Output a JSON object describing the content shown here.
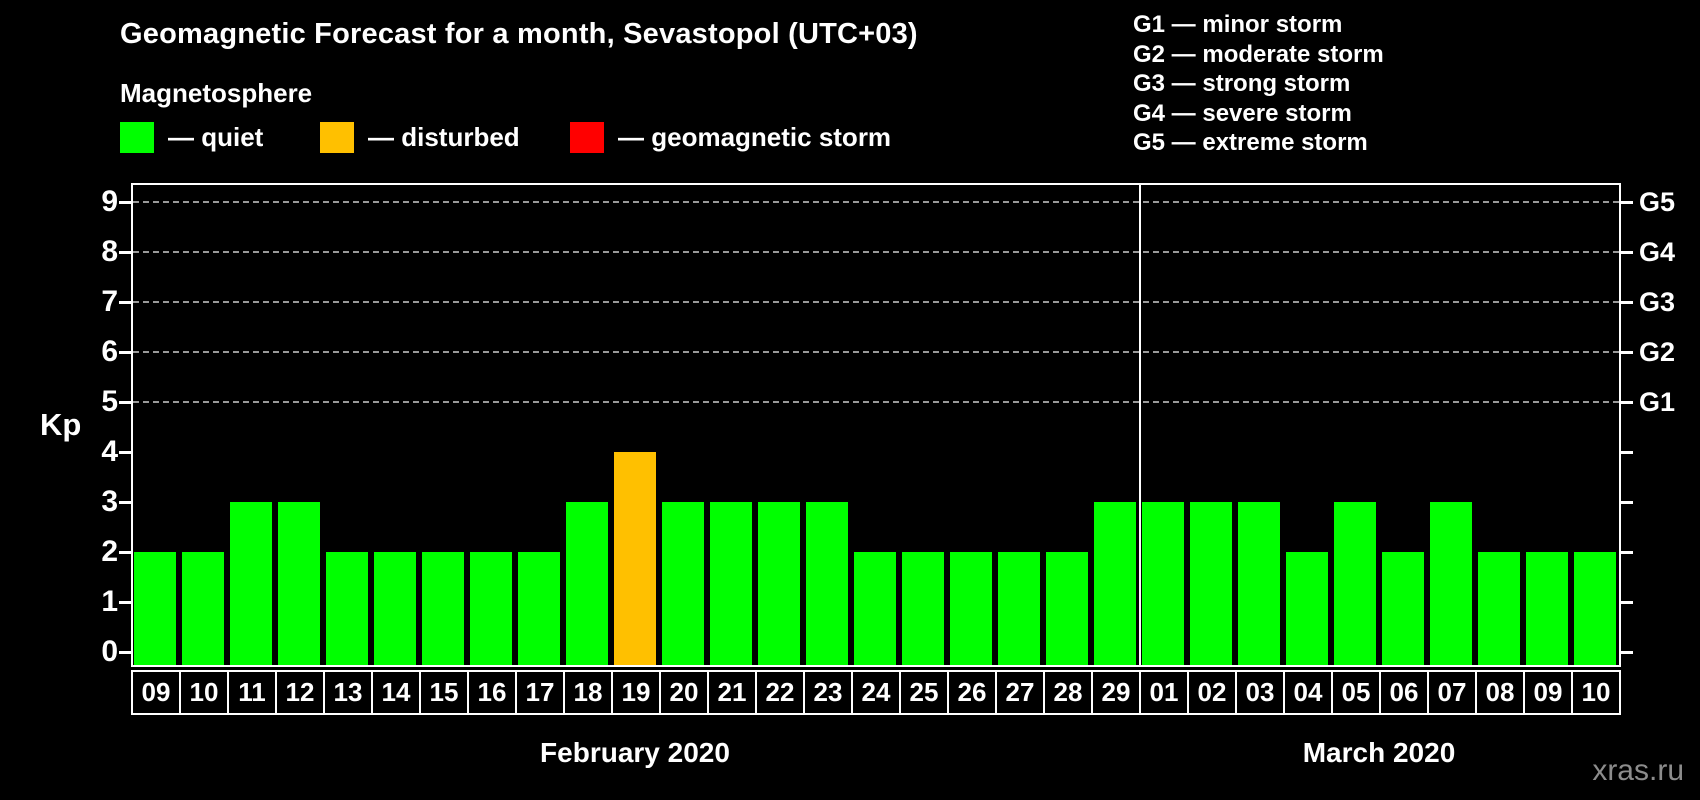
{
  "title": "Geomagnetic Forecast for a month, Sevastopol (UTC+03)",
  "subtitle": "Magnetosphere",
  "legend": {
    "items": [
      {
        "label": "— quiet",
        "status": "quiet",
        "color": "#00ff00"
      },
      {
        "label": "— disturbed",
        "status": "disturbed",
        "color": "#ffc000"
      },
      {
        "label": "— geomagnetic storm",
        "status": "storm",
        "color": "#ff0000"
      }
    ]
  },
  "g_legend": [
    "G1 — minor storm",
    "G2 — moderate storm",
    "G3 — strong storm",
    "G4 — severe storm",
    "G5 — extreme storm"
  ],
  "watermark": "xras.ru",
  "chart_data": {
    "type": "bar",
    "title": "Geomagnetic Forecast for a month, Sevastopol (UTC+03)",
    "ylabel": "Kp",
    "ylim": [
      0,
      9
    ],
    "y_ticks": [
      0,
      1,
      2,
      3,
      4,
      5,
      6,
      7,
      8,
      9
    ],
    "gridlines_at": [
      5,
      6,
      7,
      8,
      9
    ],
    "grid_style": "dashed",
    "legend_position": "top-left",
    "right_axis_labels": [
      {
        "label": "G1",
        "kp": 5
      },
      {
        "label": "G2",
        "kp": 6
      },
      {
        "label": "G3",
        "kp": 7
      },
      {
        "label": "G4",
        "kp": 8
      },
      {
        "label": "G5",
        "kp": 9
      }
    ],
    "status_colors": {
      "quiet": "#00ff00",
      "disturbed": "#ffc000",
      "storm": "#ff0000"
    },
    "groups": [
      {
        "month": "February 2020",
        "days": [
          "09",
          "10",
          "11",
          "12",
          "13",
          "14",
          "15",
          "16",
          "17",
          "18",
          "19",
          "20",
          "21",
          "22",
          "23",
          "24",
          "25",
          "26",
          "27",
          "28",
          "29"
        ],
        "values": [
          2,
          2,
          3,
          3,
          2,
          2,
          2,
          2,
          2,
          3,
          4,
          3,
          3,
          3,
          3,
          2,
          2,
          2,
          2,
          2,
          3
        ],
        "statuses": [
          "quiet",
          "quiet",
          "quiet",
          "quiet",
          "quiet",
          "quiet",
          "quiet",
          "quiet",
          "quiet",
          "quiet",
          "disturbed",
          "quiet",
          "quiet",
          "quiet",
          "quiet",
          "quiet",
          "quiet",
          "quiet",
          "quiet",
          "quiet",
          "quiet"
        ]
      },
      {
        "month": "March 2020",
        "days": [
          "01",
          "02",
          "03",
          "04",
          "05",
          "06",
          "07",
          "08",
          "09",
          "10"
        ],
        "values": [
          3,
          3,
          3,
          2,
          3,
          2,
          3,
          2,
          2,
          2
        ],
        "statuses": [
          "quiet",
          "quiet",
          "quiet",
          "quiet",
          "quiet",
          "quiet",
          "quiet",
          "quiet",
          "quiet",
          "quiet"
        ]
      }
    ]
  }
}
